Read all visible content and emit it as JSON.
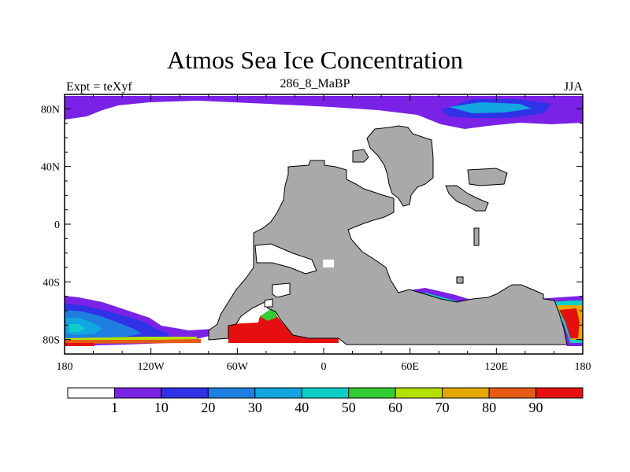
{
  "title": "Atmos Sea Ice Concentration",
  "subtitle_left": "Expt = teXyf",
  "subtitle_center": "286_8_MaBP",
  "subtitle_right": "JJA",
  "map": {
    "lon_range": [
      -180,
      180
    ],
    "lat_range": [
      -90,
      90
    ],
    "y_ticks": [
      {
        "lat": 80,
        "label": "80N"
      },
      {
        "lat": 40,
        "label": "40N"
      },
      {
        "lat": 0,
        "label": "0"
      },
      {
        "lat": -40,
        "label": "40S"
      },
      {
        "lat": -80,
        "label": "80S"
      }
    ],
    "x_ticks": [
      {
        "lon": -180,
        "label": "180"
      },
      {
        "lon": -120,
        "label": "120W"
      },
      {
        "lon": -60,
        "label": "60W"
      },
      {
        "lon": 0,
        "label": "0"
      },
      {
        "lon": 60,
        "label": "60E"
      },
      {
        "lon": 120,
        "label": "120E"
      },
      {
        "lon": 180,
        "label": "180"
      }
    ],
    "land_color": "#a9a9a9"
  },
  "colorbar": {
    "colors": [
      "#ffffff",
      "#7a22e6",
      "#2f32e6",
      "#1e7fe0",
      "#11a6e0",
      "#0ecec8",
      "#33cc33",
      "#b4e000",
      "#e6a800",
      "#e65a14",
      "#e60f0f"
    ],
    "labels": [
      "1",
      "10",
      "20",
      "30",
      "40",
      "50",
      "60",
      "70",
      "80",
      "90"
    ]
  }
}
